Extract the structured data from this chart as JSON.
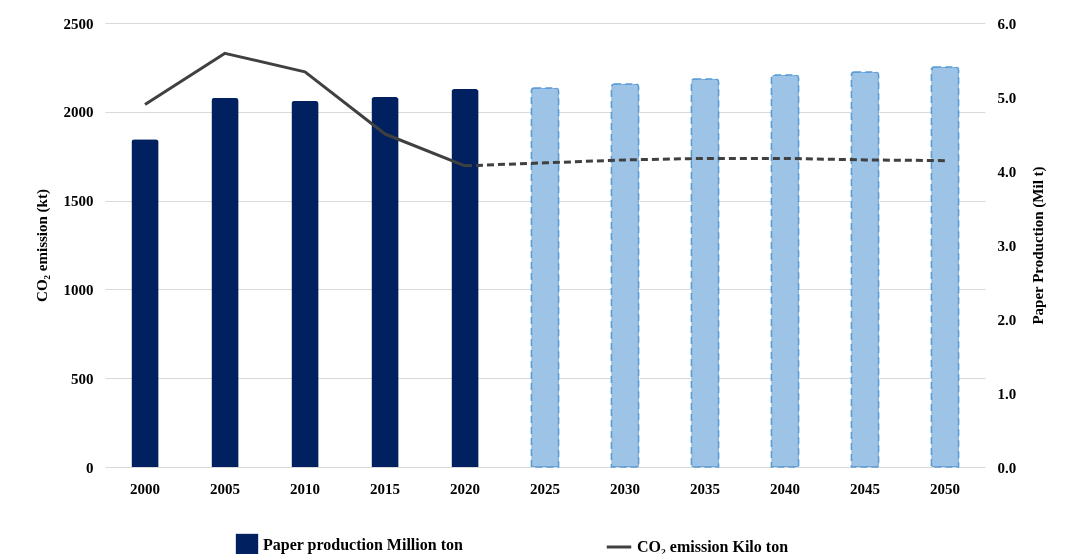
{
  "chart_data": {
    "type": "bar",
    "ylabel": "CO₂ emission (kt)",
    "y2label": "Paper Production (Mil t)",
    "categories": [
      "2000",
      "2005",
      "2010",
      "2015",
      "2020",
      "2025",
      "2030",
      "2035",
      "2040",
      "2045",
      "2050"
    ],
    "series": [
      {
        "name": "Paper production Million ton",
        "color": "#002060",
        "values": [
          1845,
          2078,
          2061,
          2083,
          2128,
          null,
          null,
          null,
          null,
          null,
          null
        ]
      },
      {
        "color": "#9dc3e6",
        "line_style": "dashed",
        "values": [
          null,
          null,
          null,
          null,
          null,
          2134,
          2157,
          2185,
          2207,
          2224,
          2252
        ]
      },
      {
        "name": "CO₂ emission Kilo ton",
        "type": "line",
        "axis": "y2",
        "color": "#404040",
        "line_style": "solid",
        "values": [
          4.9,
          5.59,
          5.34,
          4.5,
          4.07,
          null,
          null,
          null,
          null,
          null,
          null
        ]
      },
      {
        "type": "line",
        "axis": "y2",
        "color": "#404040",
        "line_style": "dashed",
        "values": [
          null,
          null,
          null,
          null,
          4.07,
          4.11,
          4.15,
          4.17,
          4.17,
          4.15,
          4.14
        ]
      }
    ],
    "ylim": [
      0,
      2500
    ],
    "yticks": [
      0,
      500,
      1000,
      1500,
      2000,
      2500
    ],
    "y2lim": [
      0,
      6
    ],
    "y2ticks": [
      {
        "value": 0,
        "label": "0.0"
      },
      {
        "value": 1,
        "label": "1.0"
      },
      {
        "value": 2,
        "label": "2.0"
      },
      {
        "value": 3,
        "label": "3.0"
      },
      {
        "value": 4,
        "label": "4.0"
      },
      {
        "value": 5,
        "label": "5.0"
      },
      {
        "value": 6,
        "label": "6.0"
      }
    ],
    "grid": "y",
    "legend": "bottom"
  }
}
